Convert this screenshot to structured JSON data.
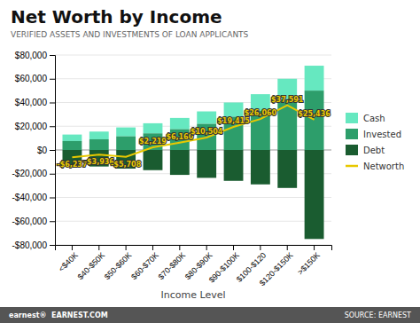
{
  "chart_data": {
    "type": "bar",
    "title": "Net Worth by Income",
    "subtitle": "VERIFIED ASSETS AND INVESTMENTS OF LOAN APPLICANTS",
    "x_label": "Income Level",
    "annotations": [
      "earnest®  EARNEST.COM",
      "SOURCE: EARNEST"
    ],
    "categories": [
      "<$40K",
      "$40-$50K",
      "$50-$60K",
      "$60-$70K",
      "$70-$80K",
      "$80-$90K",
      "$90-$100K",
      "$100-$120",
      "$120-$150K",
      ">$150K"
    ],
    "series": [
      {
        "name": "Cash",
        "color": "#66e8c0",
        "values": [
          5500,
          6500,
          7500,
          8500,
          9500,
          10500,
          12000,
          14000,
          17000,
          21000
        ]
      },
      {
        "name": "Invested",
        "color": "#2d9e6b",
        "values": [
          7500,
          9000,
          11500,
          14000,
          17500,
          22000,
          28000,
          33000,
          43000,
          50000
        ]
      },
      {
        "name": "Debt",
        "color": "#1a5c30",
        "values": [
          -13237,
          -13936,
          -15708,
          -17000,
          -21000,
          -23500,
          -26000,
          -29000,
          -32000,
          -75000
        ]
      },
      {
        "name": "Networth",
        "type": "line",
        "color": "#e8c800",
        "data_labels": true,
        "values": [
          -6237,
          -3936,
          -5708,
          2219,
          6160,
          10504,
          19415,
          26060,
          37591,
          25436
        ],
        "value_labels": [
          "-$6,237",
          "-$3,936",
          "-$5,708",
          "$2,219",
          "$6,160",
          "$10,504",
          "$19,415",
          "$26,060",
          "$37,591",
          "$25,436"
        ]
      }
    ],
    "stacked": true,
    "ylim": [
      -80000,
      80000
    ],
    "yticks": [
      {
        "value": -80000,
        "label": "-$80,000"
      },
      {
        "value": -60000,
        "label": "-$60,000"
      },
      {
        "value": -40000,
        "label": "-$40,000"
      },
      {
        "value": -20000,
        "label": "-$20,000"
      },
      {
        "value": 0,
        "label": "$0"
      },
      {
        "value": 20000,
        "label": "$20,000"
      },
      {
        "value": 40000,
        "label": "$40,000"
      },
      {
        "value": 60000,
        "label": "$60,000"
      },
      {
        "value": 80000,
        "label": "$80,000"
      }
    ],
    "grid": true,
    "legend": "right"
  }
}
